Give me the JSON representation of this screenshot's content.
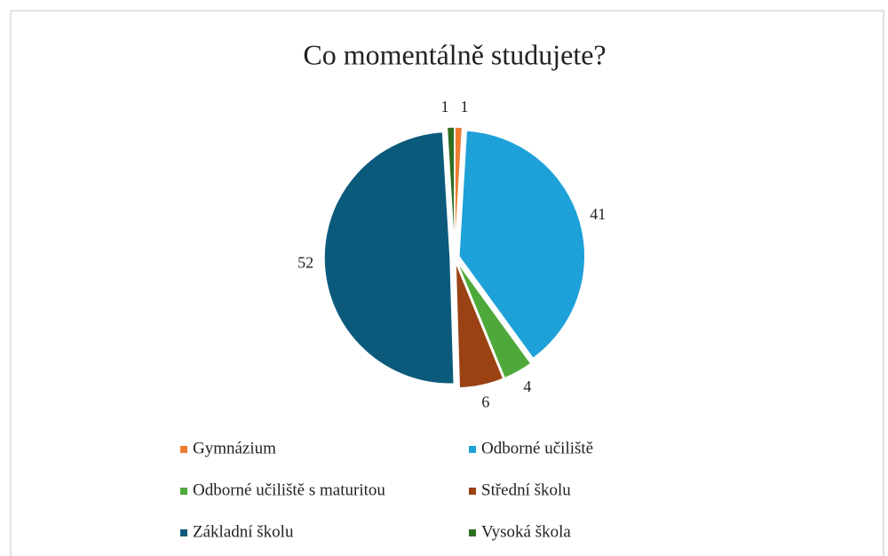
{
  "chart_data": {
    "type": "pie",
    "title": "Co momentálně  studujete?",
    "categories": [
      "Gymnázium",
      "Odborné učiliště",
      "Odborné učiliště s maturitou",
      "Střední školu",
      "Základní školu",
      "Vysoká škola"
    ],
    "values": [
      1,
      41,
      4,
      6,
      52,
      1
    ],
    "colors": [
      "#ed7d31",
      "#1ea1d8",
      "#4ea83a",
      "#9a4214",
      "#0b5a7b",
      "#2f6e22"
    ],
    "legend": "bottom"
  }
}
